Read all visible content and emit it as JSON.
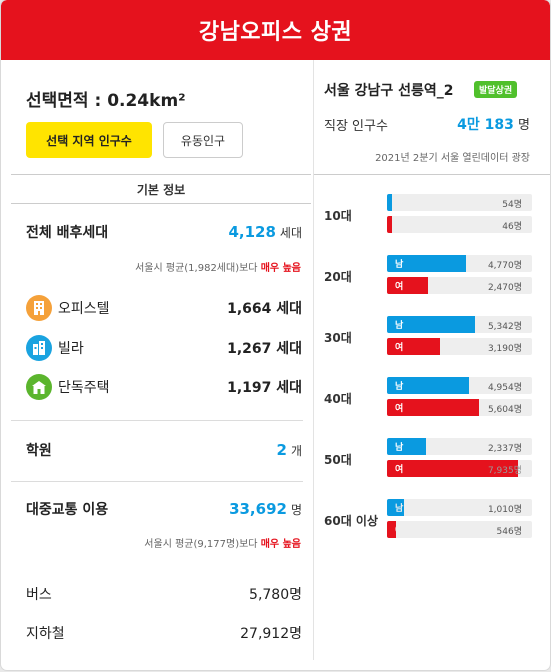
{
  "header": {
    "title": "강남오피스 상권"
  },
  "area": {
    "label": "선택면적 : 0.24km²"
  },
  "buttons": {
    "resident": "선택 지역 인구수",
    "floating": "유동인구"
  },
  "basic_info": {
    "title": "기본 정보",
    "households": {
      "label": "전체 배후세대",
      "value": "4,128",
      "unit": "세대",
      "note_prefix": "서울시 평균(1,982세대)보다",
      "note_highlight": "매우 높음"
    },
    "types": [
      {
        "label": "오피스텔",
        "value": "1,664 세대",
        "icon": "building-icon",
        "color": "#f5a13a"
      },
      {
        "label": "빌라",
        "value": "1,267 세대",
        "icon": "apartment-icon",
        "color": "#1aa3e0"
      },
      {
        "label": "단독주택",
        "value": "1,197 세대",
        "icon": "house-icon",
        "color": "#5bb52d"
      }
    ],
    "academy": {
      "label": "학원",
      "value": "2",
      "unit": "개"
    },
    "transit": {
      "label": "대중교통 이용",
      "value": "33,692",
      "unit": "명",
      "note_prefix": "서울시 평균(9,177명)보다",
      "note_highlight": "매우 높음"
    },
    "bus": {
      "label": "버스",
      "value": "5,780명"
    },
    "subway": {
      "label": "지하철",
      "value": "27,912명"
    }
  },
  "right": {
    "region": "서울 강남구 선릉역_2",
    "badge": "발달상권",
    "work_label": "직장 인구수",
    "work_value": "4만 183",
    "work_unit": "명",
    "source": "2021년 2분기 서울 열린데이터 광장"
  },
  "chart_data": {
    "type": "bar",
    "categories": [
      "10대",
      "20대",
      "30대",
      "40대",
      "50대",
      "60대 이상"
    ],
    "series": [
      {
        "name": "남",
        "values": [
          54,
          4770,
          5342,
          4954,
          2337,
          1010
        ],
        "labels": [
          "54명",
          "4,770명",
          "5,342명",
          "4,954명",
          "2,337명",
          "1,010명"
        ]
      },
      {
        "name": "여",
        "values": [
          46,
          2470,
          3190,
          5604,
          7935,
          546
        ],
        "labels": [
          "46명",
          "2,470명",
          "3,190명",
          "5,604명",
          "7,935명",
          "546명"
        ]
      }
    ],
    "xmax": 8800,
    "colors": {
      "male": "#0a9ae0",
      "female": "#e5121d"
    }
  }
}
